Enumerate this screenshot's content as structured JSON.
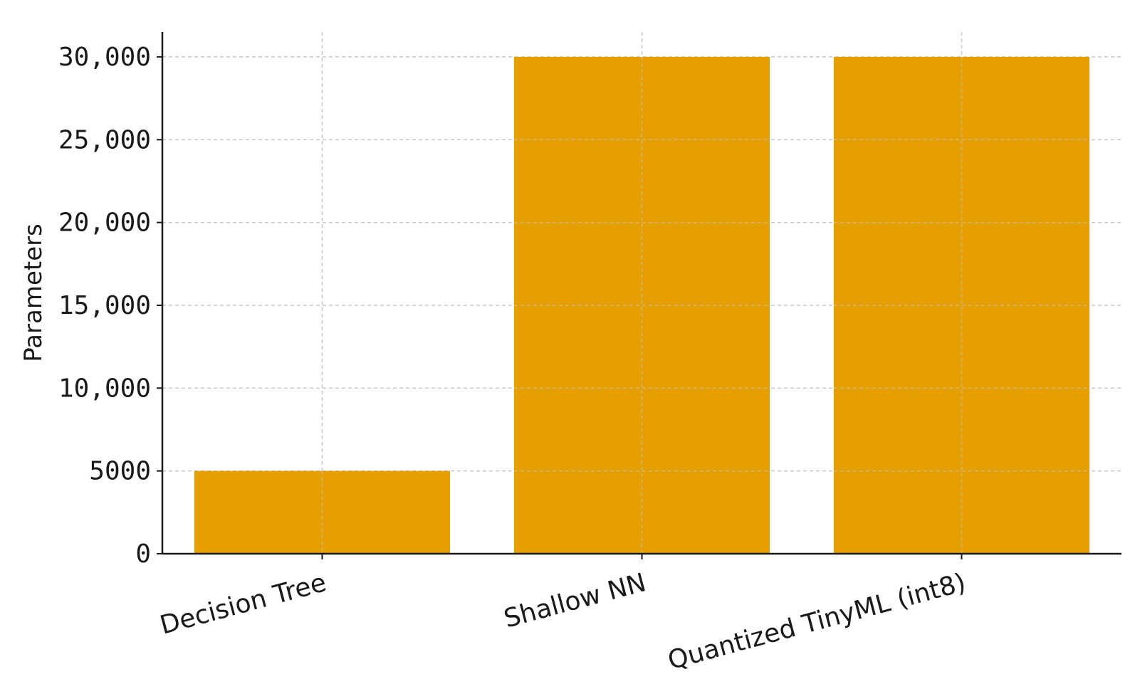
{
  "chart_data": {
    "type": "bar",
    "title": "",
    "xlabel": "",
    "ylabel": "Parameters",
    "categories": [
      "Decision Tree",
      "Shallow NN",
      "Quantized TinyML (int8)"
    ],
    "values": [
      5000,
      30000,
      30000
    ],
    "ylim": [
      0,
      31500
    ],
    "yticks": [
      0,
      5000,
      10000,
      15000,
      20000,
      25000,
      30000
    ],
    "ytick_labels": [
      "0",
      "5000",
      "10,000",
      "15,000",
      "20,000",
      "25,000",
      "30,000"
    ],
    "grid": true,
    "bar_color": "#E69F00",
    "legend": "none"
  }
}
